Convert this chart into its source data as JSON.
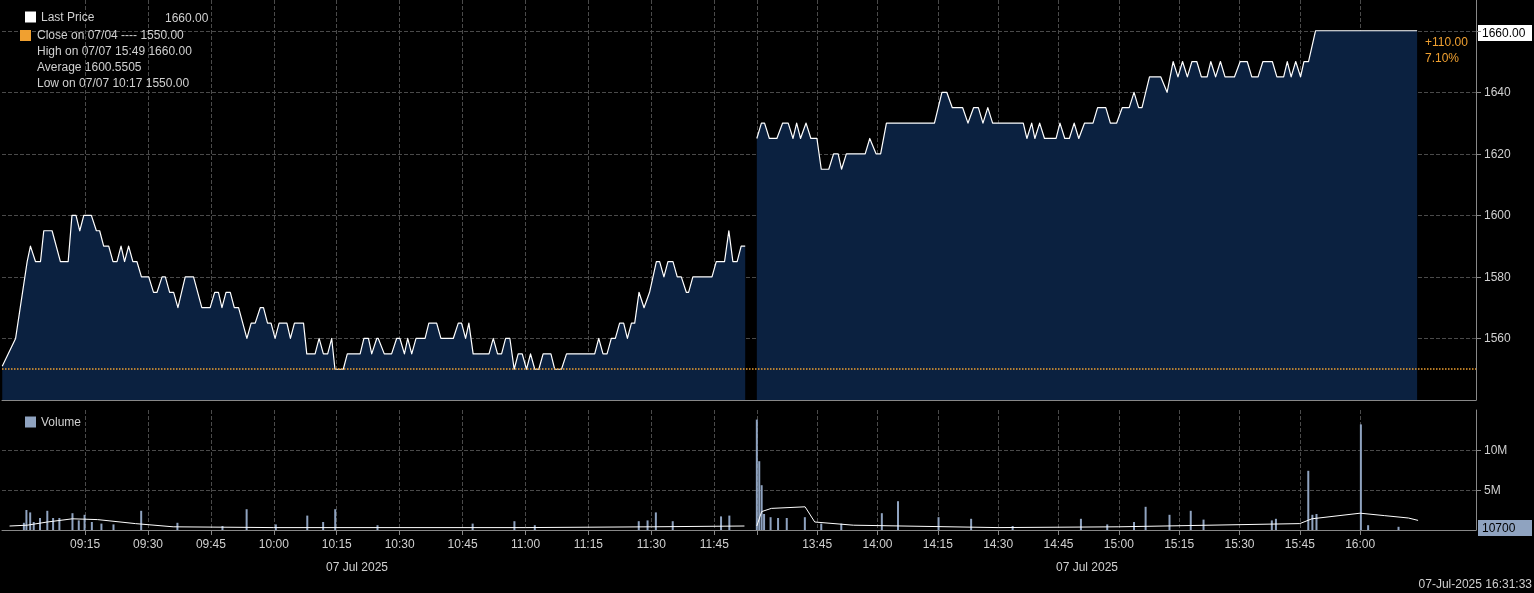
{
  "chart_data": [
    {
      "type": "area",
      "legend": "top left",
      "grid": true,
      "tick_labels": false,
      "xlim": [
        8.92,
        11.9
      ],
      "ylim": [
        1540,
        1670
      ],
      "xticks": [
        {
          "value": 9.25,
          "label": null
        },
        {
          "value": 9.5,
          "label": null
        },
        {
          "value": 9.75,
          "label": null
        },
        {
          "value": 10,
          "label": null
        },
        {
          "value": 10.25,
          "label": null
        },
        {
          "value": 10.5,
          "label": null
        },
        {
          "value": 10.75,
          "label": null
        },
        {
          "value": 11,
          "label": null
        },
        {
          "value": 11.25,
          "label": null
        },
        {
          "value": 11.5,
          "label": null
        },
        {
          "value": 11.75,
          "label": null
        }
      ],
      "yticks": [
        {
          "value": 1560,
          "label": null
        },
        {
          "value": 1580,
          "label": null
        },
        {
          "value": 1600,
          "label": null
        },
        {
          "value": 1620,
          "label": null
        },
        {
          "value": 1640,
          "label": null
        },
        {
          "value": 1660,
          "label": null
        }
      ],
      "ref_lines": [
        {
          "axis": "y",
          "value": 1550,
          "label": "Close on 07/04 ---- 1550.00",
          "color": "#f0a030",
          "line_style": "dotted"
        }
      ],
      "annotations": [
        "1660.00",
        "High on 07/07 15:49 1660.00",
        "Average 1600.5505",
        "Low on 07/07 10:17 1550.00"
      ],
      "series": [
        {
          "name": "Last Price",
          "color": "#ffffff",
          "x": [
            8.921,
            8.974,
            9.02,
            9.033,
            9.053,
            9.073,
            9.086,
            9.119,
            9.152,
            9.183,
            9.198,
            9.214,
            9.229,
            9.245,
            9.275,
            9.295,
            9.308,
            9.324,
            9.344,
            9.361,
            9.377,
            9.393,
            9.407,
            9.423,
            9.44,
            9.456,
            9.474,
            9.503,
            9.522,
            9.536,
            9.556,
            9.569,
            9.586,
            9.602,
            9.619,
            9.648,
            9.681,
            9.714,
            9.747,
            9.765,
            9.78,
            9.794,
            9.81,
            9.827,
            9.843,
            9.86,
            9.893,
            9.91,
            9.926,
            9.946,
            9.959,
            9.975,
            9.989,
            10.005,
            10.021,
            10.052,
            10.066,
            10.082,
            10.118,
            10.131,
            10.164,
            10.18,
            10.197,
            10.214,
            10.23,
            10.243,
            10.276,
            10.292,
            10.343,
            10.358,
            10.376,
            10.389,
            10.409,
            10.415,
            10.439,
            10.468,
            10.488,
            10.501,
            10.519,
            10.532,
            10.548,
            10.565,
            10.601,
            10.616,
            10.647,
            10.664,
            10.713,
            10.733,
            10.746,
            10.762,
            10.775,
            10.792,
            10.855,
            10.872,
            10.889,
            10.905,
            10.921,
            10.938,
            10.955,
            10.971,
            10.987,
            11.004,
            11.02,
            11.037,
            11.053,
            11.07,
            11.101,
            11.116,
            11.143,
            11.163,
            11.275,
            11.291,
            11.308,
            11.324,
            11.341,
            11.357,
            11.374,
            11.39,
            11.405,
            11.421,
            11.434,
            11.451,
            11.471,
            11.493,
            11.52,
            11.533,
            11.55,
            11.566,
            11.586,
            11.603,
            11.619,
            11.639,
            11.648,
            11.665,
            11.741,
            11.758,
            11.791,
            11.808,
            11.824,
            11.841,
            11.857,
            11.873
          ],
          "values": [
            1551,
            1560,
            1585,
            1590,
            1585,
            1585,
            1595,
            1595,
            1585,
            1585,
            1600,
            1600,
            1595,
            1600,
            1600,
            1595,
            1595,
            1590,
            1590,
            1585,
            1585,
            1590,
            1585,
            1590,
            1585,
            1585,
            1580,
            1580,
            1575,
            1575,
            1580,
            1580,
            1575,
            1575,
            1570,
            1580,
            1580,
            1570,
            1570,
            1575,
            1575,
            1570,
            1575,
            1575,
            1570,
            1570,
            1560,
            1565,
            1565,
            1570,
            1570,
            1565,
            1565,
            1560,
            1565,
            1565,
            1560,
            1565,
            1565,
            1555,
            1555,
            1560,
            1555,
            1555,
            1560,
            1550,
            1550,
            1555,
            1555,
            1560,
            1560,
            1555,
            1560,
            1560,
            1555,
            1555,
            1560,
            1560,
            1555,
            1560,
            1555,
            1560,
            1560,
            1565,
            1565,
            1560,
            1560,
            1565,
            1565,
            1560,
            1565,
            1555,
            1555,
            1560,
            1555,
            1555,
            1560,
            1560,
            1550,
            1555,
            1555,
            1550,
            1555,
            1550,
            1550,
            1555,
            1555,
            1550,
            1550,
            1555,
            1555,
            1560,
            1555,
            1555,
            1560,
            1560,
            1565,
            1565,
            1560,
            1565,
            1565,
            1575,
            1570,
            1575,
            1585,
            1585,
            1580,
            1585,
            1585,
            1580,
            1580,
            1575,
            1575,
            1580,
            1580,
            1585,
            1585,
            1595,
            1585,
            1585,
            1590,
            1590
          ]
        }
      ]
    },
    {
      "type": "area",
      "grid": true,
      "tick_labels": "y",
      "xlim": [
        13.48,
        16.48
      ],
      "ylim": [
        1540,
        1670
      ],
      "xticks": [
        {
          "value": 13.5,
          "label": null
        },
        {
          "value": 13.75,
          "label": null
        },
        {
          "value": 14,
          "label": null
        },
        {
          "value": 14.25,
          "label": null
        },
        {
          "value": 14.5,
          "label": null
        },
        {
          "value": 14.75,
          "label": null
        },
        {
          "value": 15,
          "label": null
        },
        {
          "value": 15.25,
          "label": null
        },
        {
          "value": 15.5,
          "label": null
        },
        {
          "value": 15.75,
          "label": null
        },
        {
          "value": 16,
          "label": null
        }
      ],
      "yticks": [
        1560,
        1580,
        1600,
        1620,
        1640,
        {
          "value": 1660,
          "label": null
        }
      ],
      "ref_lines": [
        {
          "axis": "y",
          "value": 1550,
          "color": "#f0a030",
          "line_style": "dotted"
        }
      ],
      "annotations": [
        "+110.00",
        "7.10%",
        "1660.00"
      ],
      "series": [
        {
          "color": "#ffffff",
          "x": [
            13.5,
            13.519,
            13.532,
            13.552,
            13.583,
            13.607,
            13.63,
            13.65,
            13.665,
            13.681,
            13.704,
            13.724,
            13.749,
            13.767,
            13.798,
            13.818,
            13.837,
            13.851,
            13.871,
            13.949,
            13.968,
            13.994,
            14.013,
            14.037,
            14.236,
            14.267,
            14.287,
            14.31,
            14.353,
            14.375,
            14.398,
            14.418,
            14.437,
            14.457,
            14.477,
            14.604,
            14.619,
            14.639,
            14.652,
            14.672,
            14.692,
            14.74,
            14.756,
            14.776,
            14.795,
            14.815,
            14.834,
            14.858,
            14.893,
            14.912,
            14.946,
            14.965,
            14.991,
            15.014,
            15.043,
            15.063,
            15.082,
            15.096,
            15.127,
            15.174,
            15.2,
            15.225,
            15.245,
            15.264,
            15.284,
            15.303,
            15.323,
            15.342,
            15.366,
            15.381,
            15.401,
            15.421,
            15.44,
            15.479,
            15.503,
            15.532,
            15.551,
            15.577,
            15.597,
            15.636,
            15.655,
            15.683,
            15.698,
            15.714,
            15.733,
            15.753,
            15.767,
            15.786,
            15.815,
            16.236
          ],
          "values": [
            1625,
            1630,
            1630,
            1625,
            1625,
            1630,
            1630,
            1625,
            1630,
            1625,
            1630,
            1625,
            1625,
            1615,
            1615,
            1620,
            1620,
            1615,
            1620,
            1620,
            1625,
            1620,
            1620,
            1630,
            1630,
            1640,
            1640,
            1635,
            1635,
            1630,
            1635,
            1635,
            1630,
            1635,
            1630,
            1630,
            1625,
            1630,
            1625,
            1630,
            1625,
            1625,
            1630,
            1625,
            1625,
            1630,
            1625,
            1630,
            1630,
            1635,
            1635,
            1630,
            1630,
            1635,
            1635,
            1640,
            1635,
            1635,
            1645,
            1645,
            1640,
            1650,
            1645,
            1650,
            1645,
            1650,
            1650,
            1645,
            1645,
            1650,
            1645,
            1650,
            1645,
            1645,
            1650,
            1650,
            1645,
            1645,
            1650,
            1650,
            1645,
            1645,
            1650,
            1645,
            1650,
            1645,
            1650,
            1650,
            1660,
            1660
          ]
        }
      ]
    },
    {
      "type": "bar",
      "legend": "top left",
      "grid": true,
      "tick_labels": "x",
      "xlim": [
        8.92,
        11.9
      ],
      "ylim": [
        0,
        15
      ],
      "xticks": [
        {
          "value": 9.25,
          "label": "09:15"
        },
        {
          "value": 9.5,
          "label": "09:30"
        },
        {
          "value": 9.75,
          "label": "09:45"
        },
        {
          "value": 10,
          "label": "10:00"
        },
        {
          "value": 10.25,
          "label": "10:15"
        },
        {
          "value": 10.5,
          "label": "10:30"
        },
        {
          "value": 10.75,
          "label": "10:45"
        },
        {
          "value": 11,
          "label": "11:00"
        },
        {
          "value": 11.25,
          "label": "11:15"
        },
        {
          "value": 11.5,
          "label": "11:30"
        },
        {
          "value": 11.75,
          "label": "11:45"
        }
      ],
      "yticks": [
        {
          "value": 5,
          "label": null
        },
        {
          "value": 10,
          "label": null
        }
      ],
      "annotations": [
        "07 Jul 2025"
      ],
      "series": [
        {
          "name": "Volume",
          "color": "#8fa3c0",
          "x": [
            9.007,
            9.017,
            9.032,
            9.046,
            9.071,
            9.1,
            9.123,
            9.148,
            9.2,
            9.225,
            9.248,
            9.277,
            9.315,
            9.363,
            9.473,
            9.617,
            9.796,
            9.892,
            10.008,
            10.133,
            10.196,
            10.244,
            10.412,
            10.79,
            10.956,
            11.037,
            11.45,
            11.485,
            11.518,
            11.585,
            11.777,
            11.81
          ],
          "values": [
            0.9,
            2.5,
            2.2,
            1,
            1.5,
            2.4,
            1.5,
            1.5,
            2.1,
            1.2,
            1.9,
            1,
            0.8,
            0.7,
            2.4,
            0.9,
            0.5,
            2.6,
            0.7,
            1.8,
            1,
            2.6,
            0.6,
            0.8,
            1.1,
            0.6,
            1.1,
            1.2,
            2.2,
            1.1,
            1.7,
            1.8
          ]
        },
        {
          "type": "line",
          "color": "#ffffff",
          "x": [
            8.95,
            9.02,
            9.1,
            9.2,
            9.3,
            9.45,
            9.6,
            10,
            11,
            11.5,
            11.87
          ],
          "values": [
            0.5,
            0.6,
            1,
            1.4,
            1.3,
            0.8,
            0.4,
            0.3,
            0.3,
            0.4,
            0.5
          ]
        }
      ]
    },
    {
      "type": "bar",
      "grid": true,
      "xlim": [
        13.48,
        16.48
      ],
      "ylim": [
        0,
        15
      ],
      "xticks": [
        {
          "value": 13.5,
          "label": null
        },
        {
          "value": 13.75,
          "label": "13:45"
        },
        {
          "value": 14,
          "label": "14:00"
        },
        {
          "value": 14.25,
          "label": "14:15"
        },
        {
          "value": 14.5,
          "label": "14:30"
        },
        {
          "value": 14.75,
          "label": "14:45"
        },
        {
          "value": 15,
          "label": "15:00"
        },
        {
          "value": 15.25,
          "label": "15:15"
        },
        {
          "value": 15.5,
          "label": "15:30"
        },
        {
          "value": 15.75,
          "label": "15:45"
        },
        {
          "value": 16,
          "label": "16:00"
        }
      ],
      "yticks": [
        {
          "value": 5,
          "label": "5M"
        },
        {
          "value": 10,
          "label": "10M"
        }
      ],
      "annotations": [
        "10700",
        "07 Jul 2025",
        "07-Jul-2025 16:31:33"
      ],
      "series": [
        {
          "color": "#8fa3c0",
          "x": [
            13.5,
            13.51,
            13.52,
            13.53,
            13.557,
            13.588,
            13.624,
            13.699,
            13.767,
            13.85,
            14.018,
            14.085,
            14.253,
            14.388,
            14.56,
            14.843,
            14.952,
            15.063,
            15.111,
            15.21,
            15.298,
            15.351,
            15.634,
            15.651,
            15.785,
            15.802,
            15.819,
            16.003,
            16.033,
            16.159
          ],
          "values": [
            13.8,
            8.6,
            5.6,
            2,
            1.6,
            1.5,
            1.5,
            1.6,
            0.8,
            0.8,
            2.1,
            3.6,
            1.6,
            1.4,
            0.5,
            1.4,
            0.7,
            1,
            2.9,
            1.9,
            2.4,
            1.3,
            1.2,
            1.4,
            7.4,
            1.9,
            2,
            13.2,
            0.6,
            0.4
          ]
        },
        {
          "type": "line",
          "color": "#ffffff",
          "x": [
            13.5,
            13.52,
            13.56,
            13.7,
            13.74,
            13.9,
            14.5,
            15,
            15.75,
            15.8,
            16,
            16.1,
            16.2,
            16.24
          ],
          "values": [
            0.5,
            2.3,
            2.7,
            2.9,
            1,
            0.6,
            0.3,
            0.4,
            0.8,
            1.4,
            2.1,
            1.8,
            1.5,
            1.2
          ]
        }
      ]
    }
  ]
}
